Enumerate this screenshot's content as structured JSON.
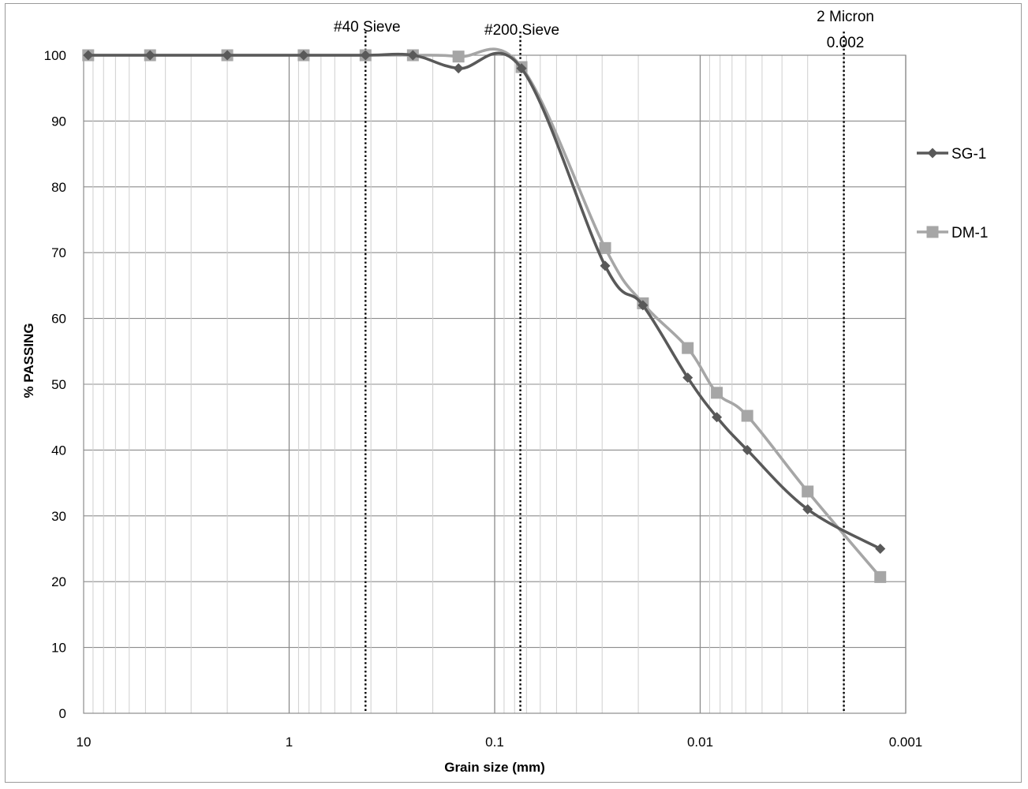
{
  "chart_data": {
    "type": "line",
    "x_scale": "log",
    "x_reversed": true,
    "xlim": [
      10,
      0.001
    ],
    "ylim": [
      0,
      100
    ],
    "xlabel": "Grain size (mm)",
    "ylabel": "% PASSING",
    "x_ticks": [
      {
        "value": 10,
        "label": "10"
      },
      {
        "value": 1,
        "label": "1"
      },
      {
        "value": 0.1,
        "label": "0.1"
      },
      {
        "value": 0.01,
        "label": "0.01"
      },
      {
        "value": 0.001,
        "label": "0.001"
      }
    ],
    "y_ticks": [
      {
        "value": 0,
        "label": "0"
      },
      {
        "value": 10,
        "label": "10"
      },
      {
        "value": 20,
        "label": "20"
      },
      {
        "value": 30,
        "label": "30"
      },
      {
        "value": 40,
        "label": "40"
      },
      {
        "value": 50,
        "label": "50"
      },
      {
        "value": 60,
        "label": "60"
      },
      {
        "value": 70,
        "label": "70"
      },
      {
        "value": 80,
        "label": "80"
      },
      {
        "value": 90,
        "label": "90"
      },
      {
        "value": 100,
        "label": "100"
      }
    ],
    "grid": true,
    "legend": "right",
    "reference_lines": [
      {
        "x": 0.425,
        "labels": [
          "#40 Sieve"
        ]
      },
      {
        "x": 0.075,
        "labels": [
          "#200 Sieve"
        ]
      },
      {
        "x": 0.002,
        "labels": [
          "2 Micron",
          "0.002"
        ]
      }
    ],
    "series": [
      {
        "name": "SG-1",
        "color": "#595959",
        "marker": "diamond",
        "points": [
          {
            "x": 9.5,
            "y": 100
          },
          {
            "x": 4.75,
            "y": 100
          },
          {
            "x": 2.0,
            "y": 100
          },
          {
            "x": 0.85,
            "y": 100
          },
          {
            "x": 0.425,
            "y": 100
          },
          {
            "x": 0.25,
            "y": 100
          },
          {
            "x": 0.15,
            "y": 98
          },
          {
            "x": 0.074,
            "y": 98
          },
          {
            "x": 0.029,
            "y": 68
          },
          {
            "x": 0.019,
            "y": 62
          },
          {
            "x": 0.0115,
            "y": 51
          },
          {
            "x": 0.0083,
            "y": 45
          },
          {
            "x": 0.0059,
            "y": 40
          },
          {
            "x": 0.003,
            "y": 31
          },
          {
            "x": 0.00133,
            "y": 25
          }
        ]
      },
      {
        "name": "DM-1",
        "color": "#a6a6a6",
        "marker": "square",
        "points": [
          {
            "x": 9.5,
            "y": 100
          },
          {
            "x": 4.75,
            "y": 100
          },
          {
            "x": 2.0,
            "y": 100
          },
          {
            "x": 0.85,
            "y": 100
          },
          {
            "x": 0.425,
            "y": 100
          },
          {
            "x": 0.25,
            "y": 100
          },
          {
            "x": 0.15,
            "y": 99.8
          },
          {
            "x": 0.074,
            "y": 98.2
          },
          {
            "x": 0.029,
            "y": 70.7
          },
          {
            "x": 0.019,
            "y": 62.3
          },
          {
            "x": 0.0115,
            "y": 55.5
          },
          {
            "x": 0.0083,
            "y": 48.7
          },
          {
            "x": 0.0059,
            "y": 45.2
          },
          {
            "x": 0.003,
            "y": 33.7
          },
          {
            "x": 0.00133,
            "y": 20.7
          }
        ]
      }
    ]
  }
}
